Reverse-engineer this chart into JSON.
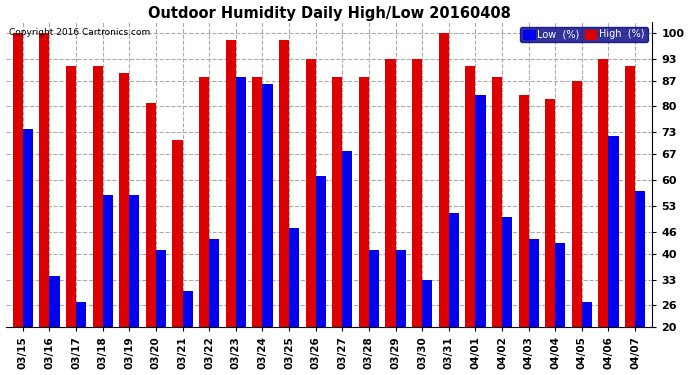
{
  "title": "Outdoor Humidity Daily High/Low 20160408",
  "copyright": "Copyright 2016 Cartronics.com",
  "categories": [
    "03/15",
    "03/16",
    "03/17",
    "03/18",
    "03/19",
    "03/20",
    "03/21",
    "03/22",
    "03/23",
    "03/24",
    "03/25",
    "03/26",
    "03/27",
    "03/28",
    "03/29",
    "03/30",
    "03/31",
    "04/01",
    "04/02",
    "04/03",
    "04/04",
    "04/05",
    "04/06",
    "04/07"
  ],
  "high_values": [
    100,
    100,
    91,
    91,
    89,
    81,
    71,
    88,
    98,
    88,
    98,
    93,
    88,
    88,
    93,
    93,
    100,
    91,
    88,
    83,
    82,
    87,
    93,
    91
  ],
  "low_values": [
    74,
    34,
    27,
    56,
    56,
    41,
    30,
    44,
    88,
    86,
    47,
    61,
    68,
    41,
    41,
    33,
    51,
    83,
    50,
    44,
    43,
    27,
    72,
    57
  ],
  "low_color": "#0000ee",
  "high_color": "#dd0000",
  "bg_color": "#ffffff",
  "grid_color": "#aaaaaa",
  "yticks": [
    20,
    26,
    33,
    40,
    46,
    53,
    60,
    67,
    73,
    80,
    87,
    93,
    100
  ],
  "ylim": [
    20,
    103
  ],
  "bar_width": 0.38,
  "legend_low_label": "Low  (%)",
  "legend_high_label": "High  (%)"
}
